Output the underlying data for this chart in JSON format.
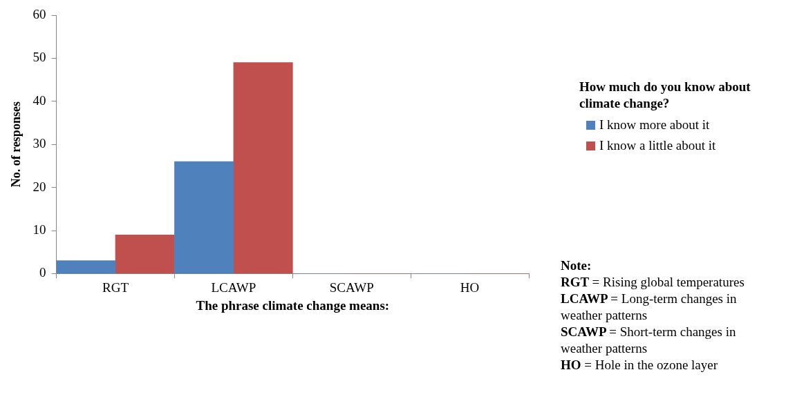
{
  "chart_data": {
    "type": "bar",
    "xlabel": "The phrase climate change means:",
    "ylabel": "No. of responses",
    "legend_title": "How much do you know about climate change?",
    "categories": [
      "RGT",
      "LCAWP",
      "SCAWP",
      "HO"
    ],
    "series": [
      {
        "name": "I know more about it",
        "color": "#4f81bd",
        "values": [
          3,
          26,
          0,
          0
        ]
      },
      {
        "name": "I know a little about it",
        "color": "#c0504d",
        "values": [
          9,
          49,
          0,
          0
        ]
      }
    ],
    "ylim": [
      0,
      60
    ],
    "yticks": [
      0,
      10,
      20,
      30,
      40,
      50,
      60
    ],
    "grid": false,
    "legend": "right",
    "annotations": [
      "Note:",
      "RGT = Rising global temperatures",
      "LCAWP = Long-term changes in weather patterns",
      "SCAWP = Short-term changes in weather patterns",
      "HO = Hole in the ozone layer"
    ]
  }
}
